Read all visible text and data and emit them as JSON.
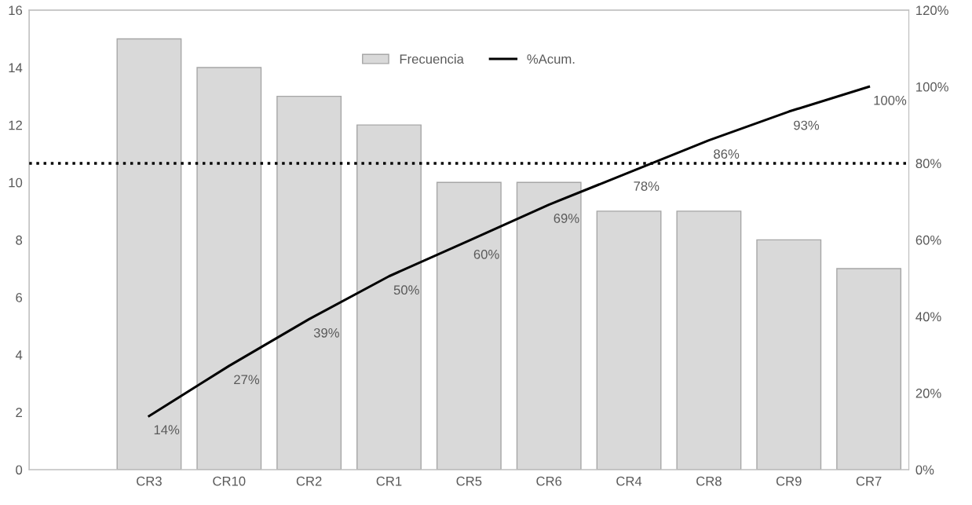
{
  "chart_data": {
    "type": "bar",
    "categories": [
      null,
      "CR3",
      "CR10",
      "CR2",
      "CR1",
      "CR5",
      "CR6",
      "CR4",
      "CR8",
      "CR9",
      "CR7"
    ],
    "series": [
      {
        "name": "Frecuencia",
        "color": "#d9d9d9",
        "values": [
          null,
          15,
          14,
          13,
          12,
          10,
          10,
          9,
          9,
          8,
          7
        ]
      },
      {
        "name": "%Acum.",
        "type": "line",
        "axis": "y2",
        "color": "#000000",
        "values": [
          null,
          14.0,
          27.1,
          39.3,
          50.5,
          59.8,
          69.2,
          77.6,
          86.0,
          93.5,
          100
        ],
        "value_labels": [
          null,
          "14%",
          "27%",
          "39%",
          "50%",
          "60%",
          "69%",
          "78%",
          "86%",
          "93%",
          "100%"
        ]
      }
    ],
    "ylim": [
      0,
      16
    ],
    "yticks": [
      0,
      2,
      4,
      6,
      8,
      10,
      12,
      14,
      16
    ],
    "y2lim": [
      0,
      120
    ],
    "y2ticks": [
      {
        "value": 0,
        "label": "0%"
      },
      {
        "value": 20,
        "label": "20%"
      },
      {
        "value": 40,
        "label": "40%"
      },
      {
        "value": 60,
        "label": "60%"
      },
      {
        "value": 80,
        "label": "80%"
      },
      {
        "value": 100,
        "label": "100%"
      },
      {
        "value": 120,
        "label": "120%"
      }
    ],
    "ref_lines": [
      {
        "axis": "y2",
        "value": 80,
        "label": null,
        "color": "#000000",
        "line_style": "dotted"
      }
    ],
    "legend": "top",
    "grid": false
  }
}
